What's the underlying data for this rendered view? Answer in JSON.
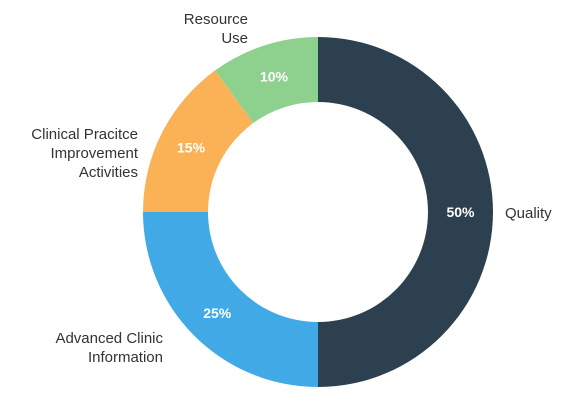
{
  "chart_data": {
    "type": "pie",
    "variant": "donut",
    "title": "",
    "legend": "none",
    "slices": [
      {
        "name": "Quality",
        "label_lines": [
          "Quality"
        ],
        "value": 50,
        "value_label": "50%",
        "color": "#2d4050"
      },
      {
        "name": "Advanced Clinic Information",
        "label_lines": [
          "Advanced Clinic",
          "Information"
        ],
        "value": 25,
        "value_label": "25%",
        "color": "#41a9e6"
      },
      {
        "name": "Clinical Pracitce Improvement Activities",
        "label_lines": [
          "Clinical Pracitce",
          "Improvement",
          "Activities"
        ],
        "value": 15,
        "value_label": "15%",
        "color": "#fbb257"
      },
      {
        "name": "Resource Use",
        "label_lines": [
          "Resource",
          "Use"
        ],
        "value": 10,
        "value_label": "10%",
        "color": "#8ed18f"
      }
    ]
  }
}
